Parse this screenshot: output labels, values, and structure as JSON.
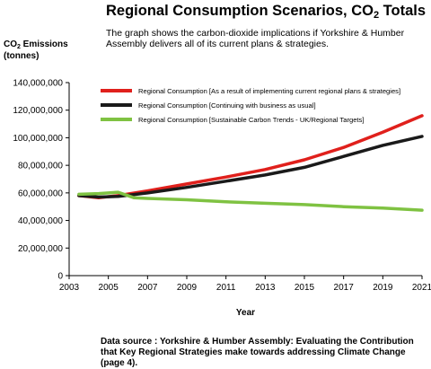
{
  "header": {
    "title_main": "Regional Consumption Scenarios, CO",
    "title_sub": "2",
    "title_tail": " Totals",
    "description": "The graph shows the carbon-dioxide implications if Yorkshire & Humber Assembly delivers all of its current plans & strategies.",
    "ylabel_line1_main": "CO",
    "ylabel_line1_sub": "2",
    "ylabel_line1_tail": " Emissions",
    "ylabel_line2": "(tonnes)"
  },
  "footer": {
    "source": "Data source : Yorkshire & Humber Assembly: Evaluating the Contribution that Key Regional Strategies make towards addressing Climate Change (page 4)."
  },
  "chart_data": {
    "type": "line",
    "xlabel": "Year",
    "ylabel": "CO2 Emissions (tonnes)",
    "xlim": [
      2003,
      2021
    ],
    "ylim": [
      0,
      140000000
    ],
    "xticks": [
      2003,
      2005,
      2007,
      2009,
      2011,
      2013,
      2015,
      2017,
      2019,
      2021
    ],
    "yticks": [
      0,
      20000000,
      40000000,
      60000000,
      80000000,
      100000000,
      120000000,
      140000000
    ],
    "ytick_labels": [
      "0",
      "20,000,000",
      "40,000,000",
      "60,000,000",
      "80,000,000",
      "100,000,000",
      "120,000,000",
      "140,000,000"
    ],
    "grid": false,
    "legend_position": "top-left",
    "series": [
      {
        "name": "Regional Consumption [As a result of implementing current regional plans & strategies]",
        "color": "#e0201c",
        "x": [
          2003.5,
          2004.5,
          2005.5,
          2007,
          2009,
          2011,
          2013,
          2015,
          2017,
          2019,
          2021
        ],
        "y": [
          58000000,
          56500000,
          58000000,
          61500000,
          66500000,
          71500000,
          77000000,
          84000000,
          93000000,
          104000000,
          116000000
        ]
      },
      {
        "name": "Regional Consumption [Continuing with business as usual]",
        "color": "#1a1a1a",
        "x": [
          2003.5,
          2004.5,
          2005.5,
          2007,
          2009,
          2011,
          2013,
          2015,
          2017,
          2019,
          2021
        ],
        "y": [
          58000000,
          57000000,
          57500000,
          60000000,
          64000000,
          68500000,
          73000000,
          78500000,
          86500000,
          94500000,
          101000000
        ]
      },
      {
        "name": "Regional Consumption [Sustainable Carbon Trends - UK/Regional Targets]",
        "color": "#7fc242",
        "x": [
          2003.5,
          2004.5,
          2005.5,
          2006.3,
          2007,
          2009,
          2011,
          2013,
          2015,
          2017,
          2019,
          2021
        ],
        "y": [
          59000000,
          59500000,
          60500000,
          56500000,
          56000000,
          55000000,
          53500000,
          52500000,
          51500000,
          50000000,
          49000000,
          47500000
        ]
      }
    ]
  }
}
